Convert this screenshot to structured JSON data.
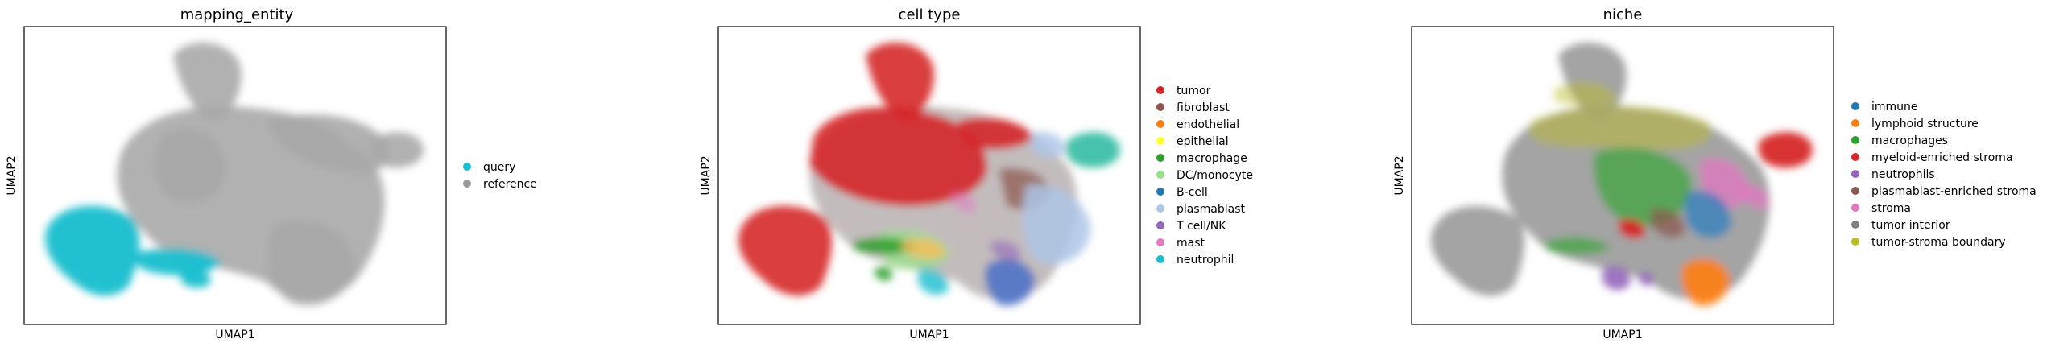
{
  "panels": [
    {
      "title": "mapping_entity",
      "xlabel": "UMAP1",
      "ylabel": "UMAP2",
      "legend": [
        {
          "label": "query",
          "color": "#17becf"
        },
        {
          "label": "reference",
          "color": "#999999"
        }
      ]
    },
    {
      "title": "cell type",
      "xlabel": "UMAP1",
      "ylabel": "UMAP2",
      "legend": [
        {
          "label": "tumor",
          "color": "#d62728"
        },
        {
          "label": "fibroblast",
          "color": "#8c564b"
        },
        {
          "label": "endothelial",
          "color": "#ff7f0e"
        },
        {
          "label": "epithelial",
          "color": "#ffff2e"
        },
        {
          "label": "macrophage",
          "color": "#2ca02c"
        },
        {
          "label": "DC/monocyte",
          "color": "#98df8a"
        },
        {
          "label": "B-cell",
          "color": "#1f77b4"
        },
        {
          "label": "plasmablast",
          "color": "#aec7e8"
        },
        {
          "label": "T cell/NK",
          "color": "#9467bd"
        },
        {
          "label": "mast",
          "color": "#e377c2"
        },
        {
          "label": "neutrophil",
          "color": "#17becf"
        }
      ]
    },
    {
      "title": "niche",
      "xlabel": "UMAP1",
      "ylabel": "UMAP2",
      "legend": [
        {
          "label": "immune",
          "color": "#1f77b4"
        },
        {
          "label": "lymphoid structure",
          "color": "#ff7f0e"
        },
        {
          "label": "macrophages",
          "color": "#2ca02c"
        },
        {
          "label": "myeloid-enriched stroma",
          "color": "#d62728"
        },
        {
          "label": "neutrophils",
          "color": "#9467bd"
        },
        {
          "label": "plasmablast-enriched stroma",
          "color": "#8c564b"
        },
        {
          "label": "stroma",
          "color": "#e377c2"
        },
        {
          "label": "tumor interior",
          "color": "#7f7f7f"
        },
        {
          "label": "tumor-stroma boundary",
          "color": "#bcbd22"
        }
      ]
    }
  ],
  "chart_data": [
    {
      "type": "scatter",
      "title": "mapping_entity",
      "xlabel": "UMAP1",
      "ylabel": "UMAP2",
      "categories": [
        "query",
        "reference"
      ],
      "colors": [
        "#17becf",
        "#999999"
      ],
      "grid": false,
      "legend_placement": "right"
    },
    {
      "type": "scatter",
      "title": "cell type",
      "xlabel": "UMAP1",
      "ylabel": "UMAP2",
      "categories": [
        "tumor",
        "fibroblast",
        "endothelial",
        "epithelial",
        "macrophage",
        "DC/monocyte",
        "B-cell",
        "plasmablast",
        "T cell/NK",
        "mast",
        "neutrophil"
      ],
      "colors": [
        "#d62728",
        "#8c564b",
        "#ff7f0e",
        "#ffff2e",
        "#2ca02c",
        "#98df8a",
        "#1f77b4",
        "#aec7e8",
        "#9467bd",
        "#e377c2",
        "#17becf"
      ],
      "grid": false,
      "legend_placement": "right"
    },
    {
      "type": "scatter",
      "title": "niche",
      "xlabel": "UMAP1",
      "ylabel": "UMAP2",
      "categories": [
        "immune",
        "lymphoid structure",
        "macrophages",
        "myeloid-enriched stroma",
        "neutrophils",
        "plasmablast-enriched stroma",
        "stroma",
        "tumor interior",
        "tumor-stroma boundary"
      ],
      "colors": [
        "#1f77b4",
        "#ff7f0e",
        "#2ca02c",
        "#d62728",
        "#9467bd",
        "#8c564b",
        "#e377c2",
        "#7f7f7f",
        "#bcbd22"
      ],
      "grid": false,
      "legend_placement": "right"
    }
  ]
}
